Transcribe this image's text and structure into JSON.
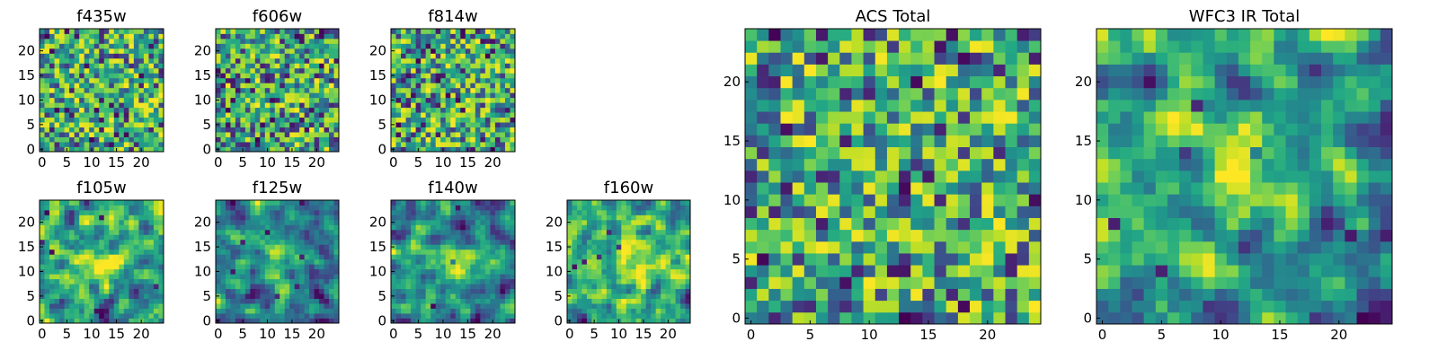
{
  "colors": {
    "colormap": "viridis",
    "background": "#ffffff",
    "axis_frame": "#000000"
  },
  "chart_data": [
    {
      "type": "heatmap",
      "title": "f435w",
      "grid_size": 25,
      "xlim": [
        0,
        24
      ],
      "ylim": [
        0,
        24
      ],
      "xticks": [
        0,
        5,
        10,
        15,
        20
      ],
      "yticks": [
        0,
        5,
        10,
        15,
        20
      ],
      "seed": 11,
      "smooth": 0,
      "clusters": [],
      "bright_bias": 0.65
    },
    {
      "type": "heatmap",
      "title": "f606w",
      "grid_size": 25,
      "xlim": [
        0,
        24
      ],
      "ylim": [
        0,
        24
      ],
      "xticks": [
        0,
        5,
        10,
        15,
        20
      ],
      "yticks": [
        0,
        5,
        10,
        15,
        20
      ],
      "seed": 23,
      "smooth": 0,
      "clusters": [],
      "bright_bias": 0.6
    },
    {
      "type": "heatmap",
      "title": "f814w",
      "grid_size": 25,
      "xlim": [
        0,
        24
      ],
      "ylim": [
        0,
        24
      ],
      "xticks": [
        0,
        5,
        10,
        15,
        20
      ],
      "yticks": [
        0,
        5,
        10,
        15,
        20
      ],
      "seed": 37,
      "smooth": 0,
      "clusters": [],
      "bright_bias": 0.6
    },
    {
      "type": "heatmap",
      "title": "f105w",
      "grid_size": 25,
      "xlim": [
        0,
        24
      ],
      "ylim": [
        0,
        24
      ],
      "xticks": [
        0,
        5,
        10,
        15,
        20
      ],
      "yticks": [
        0,
        5,
        10,
        15,
        20
      ],
      "seed": 41,
      "smooth": 1,
      "clusters": [
        [
          12,
          12,
          0.35
        ]
      ],
      "bright_bias": 0.55
    },
    {
      "type": "heatmap",
      "title": "f125w",
      "grid_size": 25,
      "xlim": [
        0,
        24
      ],
      "ylim": [
        0,
        24
      ],
      "xticks": [
        0,
        5,
        10,
        15,
        20
      ],
      "yticks": [
        0,
        5,
        10,
        15,
        20
      ],
      "seed": 53,
      "smooth": 1,
      "clusters": [
        [
          12,
          12,
          0.3
        ]
      ],
      "bright_bias": 0.55
    },
    {
      "type": "heatmap",
      "title": "f140w",
      "grid_size": 25,
      "xlim": [
        0,
        24
      ],
      "ylim": [
        0,
        24
      ],
      "xticks": [
        0,
        5,
        10,
        15,
        20
      ],
      "yticks": [
        0,
        5,
        10,
        15,
        20
      ],
      "seed": 67,
      "smooth": 1,
      "clusters": [
        [
          12,
          12,
          0.3
        ]
      ],
      "bright_bias": 0.55
    },
    {
      "type": "heatmap",
      "title": "f160w",
      "grid_size": 25,
      "xlim": [
        0,
        24
      ],
      "ylim": [
        0,
        24
      ],
      "xticks": [
        0,
        5,
        10,
        15,
        20
      ],
      "yticks": [
        0,
        5,
        10,
        15,
        20
      ],
      "seed": 79,
      "smooth": 1,
      "clusters": [
        [
          13,
          12,
          0.35
        ]
      ],
      "bright_bias": 0.5
    },
    {
      "type": "heatmap",
      "title": "ACS Total",
      "grid_size": 25,
      "xlim": [
        0,
        24
      ],
      "ylim": [
        0,
        24
      ],
      "xticks": [
        0,
        10,
        20
      ],
      "yticks": [
        0,
        5,
        10,
        15,
        20
      ],
      "tick_step_labels": [
        0,
        5,
        10,
        15,
        20
      ],
      "seed": 97,
      "smooth": 0,
      "clusters": [],
      "bright_bias": 0.62
    },
    {
      "type": "heatmap",
      "title": "WFC3 IR Total",
      "grid_size": 25,
      "xlim": [
        0,
        24
      ],
      "ylim": [
        0,
        24
      ],
      "xticks": [
        0,
        5,
        10,
        15,
        20
      ],
      "yticks": [
        0,
        5,
        10,
        15,
        20
      ],
      "seed": 113,
      "smooth": 1,
      "clusters": [
        [
          12,
          13,
          0.45
        ]
      ],
      "bright_bias": 0.52
    }
  ]
}
